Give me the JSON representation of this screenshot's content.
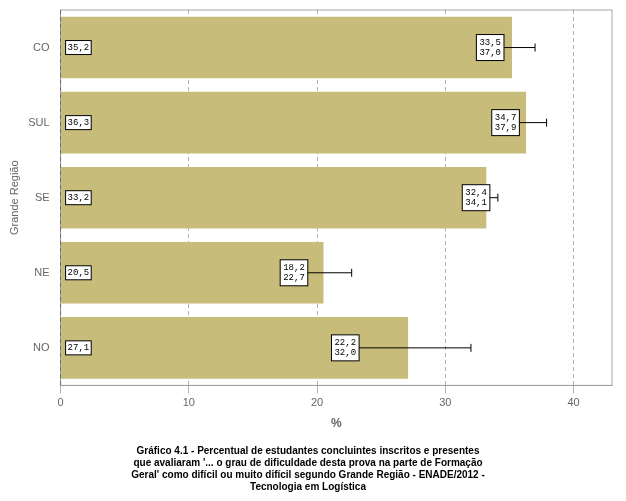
{
  "chart_data": {
    "type": "bar",
    "orientation": "horizontal",
    "categories": [
      "NO",
      "NE",
      "SE",
      "SUL",
      "CO"
    ],
    "values": [
      27.1,
      20.5,
      33.2,
      36.3,
      35.2
    ],
    "value_labels": [
      "27,1",
      "20,5",
      "33,2",
      "36,3",
      "35,2"
    ],
    "data_labels": true,
    "error_low": [
      22.2,
      18.2,
      32.4,
      34.7,
      33.5
    ],
    "error_high": [
      32.0,
      22.7,
      34.1,
      37.9,
      37.0
    ],
    "interval_labels": [
      [
        "22,2",
        "32,0"
      ],
      [
        "18,2",
        "22,7"
      ],
      [
        "32,4",
        "34,1"
      ],
      [
        "34,7",
        "37,9"
      ],
      [
        "33,5",
        "37,0"
      ]
    ],
    "color": "#C8BC7A",
    "xlim": [
      0,
      43
    ],
    "xticks": [
      0,
      10,
      20,
      30,
      40
    ],
    "xlabel": "%",
    "ylabel": "Grande Região",
    "caption": "Gráfico 4.1 - Percentual de estudantes concluintes inscritos e presentes\nque avaliaram '... o grau de dificuldade desta prova na parte de Formação\nGeral' como difícil ou muito difícil segundo Grande Região - ENADE/2012 -\nTecnologia em Logística",
    "grid": true
  }
}
